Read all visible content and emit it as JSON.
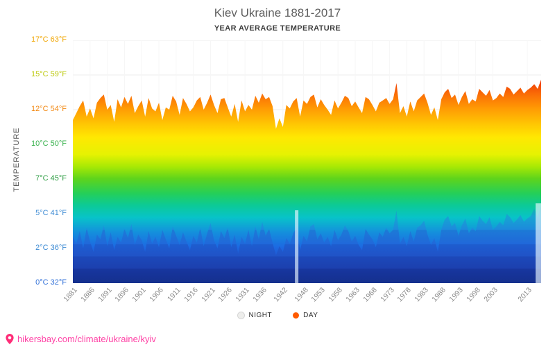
{
  "header": {
    "title": "Kiev Ukraine 1881-2017",
    "subtitle": "YEAR AVERAGE TEMPERATURE"
  },
  "footer": {
    "url": "hikersbay.com/climate/ukraine/kyiv",
    "color": "#ff3fa4"
  },
  "chart_data": {
    "type": "area",
    "title": "Kiev Ukraine 1881-2017",
    "subtitle": "YEAR AVERAGE TEMPERATURE",
    "ylabel": "TEMPERATURE",
    "xlabel": "",
    "x_range": [
      1881,
      2017
    ],
    "grid": true,
    "legend_position": "bottom",
    "y_ticks": [
      {
        "value": 17,
        "label": "17°C 63°F",
        "color": "#f0a500"
      },
      {
        "value": 15,
        "label": "15°C 59°F",
        "color": "#bcc80a"
      },
      {
        "value": 12,
        "label": "12°C 54°F",
        "color": "#f28812"
      },
      {
        "value": 10,
        "label": "10°C 50°F",
        "color": "#35b04a"
      },
      {
        "value": 7,
        "label": "7°C 45°F",
        "color": "#2f9e44"
      },
      {
        "value": 5,
        "label": "5°C 41°F",
        "color": "#3d8bd4"
      },
      {
        "value": 2,
        "label": "2°C 36°F",
        "color": "#3d8bd4"
      },
      {
        "value": 0,
        "label": "0°C 32°F",
        "color": "#2f6fd8"
      }
    ],
    "x_tick_years": [
      1881,
      1886,
      1891,
      1896,
      1901,
      1906,
      1911,
      1916,
      1921,
      1926,
      1931,
      1936,
      1942,
      1948,
      1953,
      1958,
      1963,
      1968,
      1973,
      1978,
      1983,
      1988,
      1993,
      1998,
      2003,
      2013
    ],
    "series": [
      {
        "name": "DAY",
        "color": "#ff5a00",
        "values": [
          11.4,
          11.8,
          12.3,
          12.8,
          11.6,
          12.1,
          11.5,
          12.6,
          13.0,
          13.3,
          12.0,
          12.4,
          11.3,
          12.9,
          12.2,
          13.1,
          12.5,
          13.2,
          11.8,
          12.3,
          12.8,
          11.6,
          13.0,
          12.1,
          11.9,
          12.6,
          11.4,
          12.2,
          12.0,
          13.2,
          12.7,
          11.7,
          13.0,
          12.5,
          11.9,
          12.2,
          12.8,
          13.1,
          12.0,
          12.6,
          13.3,
          12.4,
          11.8,
          12.9,
          13.0,
          12.2,
          11.6,
          12.5,
          11.3,
          12.8,
          11.9,
          12.4,
          12.0,
          13.2,
          12.6,
          13.4,
          12.9,
          13.1,
          12.3,
          10.9,
          11.5,
          11.0,
          12.4,
          12.1,
          12.7,
          13.0,
          11.6,
          12.8,
          12.5,
          13.1,
          13.3,
          12.2,
          12.9,
          12.4,
          12.0,
          11.7,
          12.8,
          12.1,
          12.6,
          13.2,
          13.0,
          12.3,
          12.7,
          12.2,
          11.8,
          13.1,
          12.9,
          12.4,
          11.9,
          12.6,
          12.8,
          13.0,
          12.5,
          12.9,
          14.3,
          11.8,
          12.3,
          11.6,
          12.7,
          11.9,
          12.8,
          13.1,
          13.4,
          12.6,
          11.7,
          12.2,
          11.4,
          12.9,
          13.5,
          13.8,
          13.0,
          13.3,
          12.4,
          13.1,
          13.6,
          12.5,
          12.9,
          12.7,
          13.8,
          13.5,
          13.2,
          13.7,
          12.8,
          13.0,
          13.4,
          13.1,
          14.0,
          13.8,
          13.3,
          13.6,
          13.9,
          13.4,
          13.7,
          13.9,
          14.2,
          13.8,
          14.6
        ]
      },
      {
        "name": "NIGHT",
        "color": "#eeeeec",
        "values": [
          3.0,
          2.4,
          3.5,
          2.0,
          3.8,
          2.6,
          1.8,
          3.2,
          2.8,
          4.0,
          2.2,
          3.4,
          1.9,
          3.0,
          2.5,
          3.7,
          2.9,
          4.1,
          2.3,
          3.2,
          2.7,
          1.8,
          3.5,
          2.4,
          3.0,
          2.1,
          3.6,
          2.8,
          2.0,
          3.9,
          3.1,
          2.3,
          3.4,
          2.6,
          1.9,
          3.1,
          2.5,
          3.8,
          2.2,
          3.3,
          4.2,
          2.7,
          2.0,
          3.5,
          2.9,
          3.8,
          2.1,
          3.2,
          1.7,
          3.0,
          2.4,
          3.6,
          2.2,
          3.9,
          2.8,
          4.3,
          3.1,
          3.7,
          2.5,
          1.6,
          2.2,
          1.8,
          2.9,
          2.4,
          3.3,
          3.8,
          1.9,
          3.1,
          2.6,
          3.9,
          4.1,
          2.8,
          3.3,
          2.5,
          3.0,
          2.2,
          3.6,
          2.7,
          3.2,
          4.0,
          3.5,
          2.6,
          3.1,
          2.3,
          1.9,
          3.7,
          3.2,
          2.8,
          2.1,
          3.4,
          3.0,
          3.8,
          3.3,
          3.6,
          5.2,
          2.4,
          3.0,
          2.2,
          3.5,
          2.6,
          3.8,
          4.0,
          4.4,
          3.2,
          2.3,
          2.9,
          1.8,
          3.6,
          4.5,
          4.8,
          3.9,
          4.2,
          3.1,
          4.0,
          4.6,
          3.3,
          3.8,
          3.5,
          4.8,
          4.4,
          4.1,
          4.7,
          3.6,
          3.9,
          4.3,
          4.0,
          5.0,
          4.7,
          4.2,
          4.5,
          4.9,
          4.3,
          4.6,
          4.8,
          5.3,
          4.7,
          5.5
        ]
      }
    ],
    "legend": [
      {
        "label": "NIGHT",
        "dot_color": "#eeeeec"
      },
      {
        "label": "DAY",
        "dot_color": "#ff5a00"
      }
    ],
    "gradient_stops": [
      {
        "offset": "0%",
        "color": "#a50d0d"
      },
      {
        "offset": "12%",
        "color": "#cf1a08"
      },
      {
        "offset": "17%",
        "color": "#ef3d07"
      },
      {
        "offset": "22%",
        "color": "#fa6c06"
      },
      {
        "offset": "28%",
        "color": "#ff9a04"
      },
      {
        "offset": "34%",
        "color": "#ffc303"
      },
      {
        "offset": "40%",
        "color": "#ffe802"
      },
      {
        "offset": "47%",
        "color": "#e6f202"
      },
      {
        "offset": "52%",
        "color": "#a8e904"
      },
      {
        "offset": "57%",
        "color": "#5ed41c"
      },
      {
        "offset": "63%",
        "color": "#25cf58"
      },
      {
        "offset": "68%",
        "color": "#0cca97"
      },
      {
        "offset": "73%",
        "color": "#08c3c9"
      },
      {
        "offset": "79%",
        "color": "#1490dc"
      },
      {
        "offset": "85%",
        "color": "#1c6ae2"
      },
      {
        "offset": "90%",
        "color": "#2154cd"
      },
      {
        "offset": "95%",
        "color": "#1d3fae"
      },
      {
        "offset": "100%",
        "color": "#152f80"
      }
    ],
    "night_band_stops": [
      {
        "offset": "0%",
        "color": "rgba(40,100,210,0)"
      },
      {
        "offset": "58%",
        "color": "rgba(40,100,210,0.05)"
      },
      {
        "offset": "66%",
        "color": "rgba(35,105,215,0.22)"
      },
      {
        "offset": "72%",
        "color": "rgba(42,110,220,0.35)"
      },
      {
        "offset": "72%",
        "color": "rgba(45,115,225,0.4)"
      },
      {
        "offset": "78%",
        "color": "rgba(45,115,225,0.4)"
      },
      {
        "offset": "78%",
        "color": "rgba(38,95,210,0.5)"
      },
      {
        "offset": "84%",
        "color": "rgba(38,95,210,0.5)"
      },
      {
        "offset": "84%",
        "color": "rgba(32,78,190,0.55)"
      },
      {
        "offset": "89%",
        "color": "rgba(32,78,190,0.55)"
      },
      {
        "offset": "89%",
        "color": "rgba(26,62,170,0.6)"
      },
      {
        "offset": "94%",
        "color": "rgba(26,62,170,0.6)"
      },
      {
        "offset": "94%",
        "color": "rgba(20,48,148,0.65)"
      },
      {
        "offset": "100%",
        "color": "rgba(20,48,148,0.65)"
      }
    ],
    "data_gaps": [
      {
        "year": 1946,
        "top_c": 5.2,
        "width": 5
      },
      {
        "year": 2016.3,
        "top_c": 5.6,
        "width": 9
      }
    ]
  }
}
